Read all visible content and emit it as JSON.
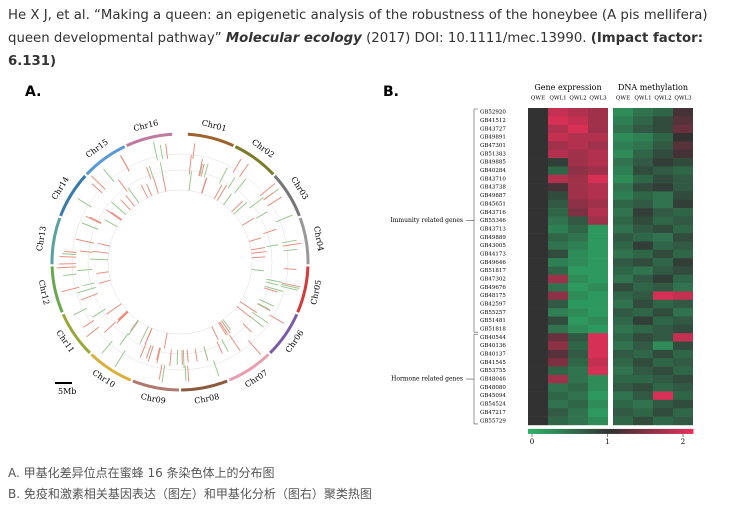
{
  "citation": {
    "authors": "He X J, et al.",
    "title": "“Making a queen: an epigenetic analysis of the robustness of the honeybee (A pis mellifera) queen developmental pathway”",
    "journal": "Molecular ecology",
    "year_doi": "(2017) DOI: 10.1111/mec.13990.",
    "impact": "(Impact factor: 6.131)"
  },
  "panel_a": {
    "label": "A.",
    "scale_bar": "5Mb",
    "chromosomes": [
      {
        "label": "Chr01",
        "color": "#a0622d"
      },
      {
        "label": "Chr02",
        "color": "#7d7a2a"
      },
      {
        "label": "Chr03",
        "color": "#777777"
      },
      {
        "label": "Chr04",
        "color": "#999999"
      },
      {
        "label": "Chr05",
        "color": "#d23c3c"
      },
      {
        "label": "Chr06",
        "color": "#7b5aa6"
      },
      {
        "label": "Chr07",
        "color": "#e8a0b0"
      },
      {
        "label": "Chr08",
        "color": "#8c5a3c"
      },
      {
        "label": "Chr09",
        "color": "#b07a70"
      },
      {
        "label": "Chr10",
        "color": "#d9b03a"
      },
      {
        "label": "Chr11",
        "color": "#9aa83a"
      },
      {
        "label": "Chr12",
        "color": "#6aa84f"
      },
      {
        "label": "Chr13",
        "color": "#5aa0a0"
      },
      {
        "label": "Chr14",
        "color": "#3a7aa8"
      },
      {
        "label": "Chr15",
        "color": "#5a9ad6"
      },
      {
        "label": "Chr16",
        "color": "#c07aa0"
      }
    ]
  },
  "panel_b": {
    "label": "B.",
    "column_groups": [
      "Gene expression",
      "DNA methylation"
    ],
    "columns": [
      "QWE",
      "QWL1",
      "QWL2",
      "QWL3"
    ],
    "colorbar_ticks": [
      0,
      1,
      2
    ],
    "groups": [
      {
        "label": "Immunity related genes",
        "genes": [
          {
            "name": "GB52920",
            "expression": [
              1,
              1.8,
              1.7,
              1.6
            ],
            "methylation": [
              0.3,
              0.5,
              0.6,
              1.1
            ]
          },
          {
            "name": "GB41512",
            "expression": [
              1,
              1.9,
              1.8,
              1.6
            ],
            "methylation": [
              0.4,
              0.6,
              0.8,
              1.2
            ]
          },
          {
            "name": "GB43727",
            "expression": [
              1,
              1.7,
              1.9,
              1.6
            ],
            "methylation": [
              0.5,
              0.7,
              0.8,
              1.3
            ]
          },
          {
            "name": "GB49891",
            "expression": [
              1,
              1.8,
              1.7,
              1.7
            ],
            "methylation": [
              0.3,
              0.4,
              0.6,
              1.0
            ]
          },
          {
            "name": "GB47301",
            "expression": [
              1,
              1.6,
              1.7,
              1.6
            ],
            "methylation": [
              0.4,
              0.5,
              0.7,
              1.2
            ]
          },
          {
            "name": "GB51383",
            "expression": [
              1,
              1.7,
              1.6,
              1.7
            ],
            "methylation": [
              0.3,
              0.6,
              0.8,
              1.1
            ]
          },
          {
            "name": "GB49885",
            "expression": [
              1,
              0.9,
              1.6,
              1.7
            ],
            "methylation": [
              0.5,
              0.7,
              0.9,
              0.8
            ]
          },
          {
            "name": "GB40284",
            "expression": [
              1,
              0.6,
              1.5,
              1.6
            ],
            "methylation": [
              0.4,
              0.8,
              0.7,
              0.6
            ]
          },
          {
            "name": "GB43710",
            "expression": [
              1,
              1.7,
              1.6,
              1.9
            ],
            "methylation": [
              0.3,
              0.6,
              0.8,
              0.7
            ]
          },
          {
            "name": "GB43738",
            "expression": [
              1,
              1.1,
              1.6,
              1.7
            ],
            "methylation": [
              0.5,
              0.8,
              0.9,
              0.7
            ]
          },
          {
            "name": "GB49887",
            "expression": [
              1,
              0.8,
              1.6,
              1.7
            ],
            "methylation": [
              0.4,
              0.6,
              0.5,
              0.8
            ]
          },
          {
            "name": "GB45651",
            "expression": [
              1,
              0.7,
              1.5,
              1.6
            ],
            "methylation": [
              0.6,
              0.7,
              0.5,
              0.9
            ]
          },
          {
            "name": "GB43716",
            "expression": [
              1,
              0.6,
              1.4,
              1.7
            ],
            "methylation": [
              0.5,
              0.9,
              0.7,
              0.6
            ]
          },
          {
            "name": "GB55346",
            "expression": [
              1,
              0.5,
              0.7,
              1.6
            ],
            "methylation": [
              0.6,
              0.8,
              0.6,
              0.7
            ]
          },
          {
            "name": "GB43713",
            "expression": [
              1,
              0.4,
              0.6,
              0.2
            ],
            "methylation": [
              0.5,
              0.7,
              0.8,
              0.6
            ]
          },
          {
            "name": "GB49889",
            "expression": [
              1,
              0.6,
              0.5,
              0.2
            ],
            "methylation": [
              0.7,
              0.6,
              0.5,
              0.8
            ]
          },
          {
            "name": "GB43005",
            "expression": [
              1,
              0.5,
              0.4,
              0.2
            ],
            "methylation": [
              0.6,
              0.9,
              0.6,
              0.7
            ]
          },
          {
            "name": "GB44173",
            "expression": [
              1,
              0.8,
              0.3,
              0.2
            ],
            "methylation": [
              0.5,
              0.6,
              0.8,
              0.6
            ]
          },
          {
            "name": "GB49646",
            "expression": [
              1,
              0.4,
              0.3,
              0.2
            ],
            "methylation": [
              0.7,
              0.8,
              0.6,
              0.9
            ]
          },
          {
            "name": "GB51817",
            "expression": [
              1,
              0.6,
              0.2,
              0.2
            ],
            "methylation": [
              0.6,
              0.5,
              0.7,
              0.8
            ]
          },
          {
            "name": "GB47302",
            "expression": [
              1,
              1.6,
              0.3,
              0.2
            ],
            "methylation": [
              0.5,
              0.7,
              0.9,
              0.6
            ]
          },
          {
            "name": "GB49676",
            "expression": [
              1,
              0.5,
              0.2,
              0.3
            ],
            "methylation": [
              0.8,
              0.6,
              0.7,
              0.5
            ]
          },
          {
            "name": "GB48175",
            "expression": [
              1,
              1.5,
              0.3,
              0.2
            ],
            "methylation": [
              0.6,
              0.7,
              1.9,
              1.8
            ]
          },
          {
            "name": "GB42597",
            "expression": [
              1,
              0.7,
              0.2,
              0.2
            ],
            "methylation": [
              0.5,
              0.8,
              0.6,
              0.7
            ]
          },
          {
            "name": "GB55257",
            "expression": [
              1,
              0.4,
              0.3,
              0.2
            ],
            "methylation": [
              0.7,
              0.6,
              0.8,
              0.5
            ]
          },
          {
            "name": "GB51481",
            "expression": [
              1,
              0.8,
              0.2,
              0.3
            ],
            "methylation": [
              0.6,
              0.9,
              0.6,
              0.7
            ]
          },
          {
            "name": "GB51818",
            "expression": [
              1,
              0.5,
              0.3,
              0.2
            ],
            "methylation": [
              0.5,
              0.6,
              0.7,
              0.8
            ]
          }
        ]
      },
      {
        "label": "Hormone related genes",
        "genes": [
          {
            "name": "GB40544",
            "expression": [
              1,
              1.3,
              0.7,
              1.9
            ],
            "methylation": [
              0.6,
              0.8,
              0.7,
              1.8
            ]
          },
          {
            "name": "GB40136",
            "expression": [
              1,
              1.5,
              0.6,
              1.9
            ],
            "methylation": [
              0.5,
              0.7,
              0.3,
              0.8
            ]
          },
          {
            "name": "GB40137",
            "expression": [
              1,
              1.2,
              0.7,
              1.9
            ],
            "methylation": [
              0.7,
              0.6,
              0.8,
              0.6
            ]
          },
          {
            "name": "GB41545",
            "expression": [
              1,
              1.4,
              0.6,
              1.8
            ],
            "methylation": [
              0.6,
              0.8,
              0.6,
              0.7
            ]
          },
          {
            "name": "GB53755",
            "expression": [
              1,
              0.6,
              0.5,
              1.9
            ],
            "methylation": [
              0.5,
              0.7,
              0.8,
              0.6
            ]
          },
          {
            "name": "GB48046",
            "expression": [
              1,
              1.6,
              0.5,
              0.3
            ],
            "methylation": [
              0.6,
              0.6,
              0.7,
              0.8
            ]
          },
          {
            "name": "GB48080",
            "expression": [
              1,
              0.5,
              0.6,
              0.3
            ],
            "methylation": [
              0.7,
              0.8,
              0.6,
              0.7
            ]
          },
          {
            "name": "GB45094",
            "expression": [
              1,
              0.6,
              0.5,
              0.2
            ],
            "methylation": [
              0.5,
              0.7,
              1.9,
              0.6
            ]
          },
          {
            "name": "GB54524",
            "expression": [
              1,
              0.5,
              0.6,
              0.3
            ],
            "methylation": [
              0.6,
              0.5,
              0.7,
              0.8
            ]
          },
          {
            "name": "GB47217",
            "expression": [
              1,
              0.7,
              0.5,
              0.2
            ],
            "methylation": [
              0.7,
              0.6,
              0.8,
              0.6
            ]
          },
          {
            "name": "GB55729",
            "expression": [
              1,
              0.6,
              0.5,
              0.3
            ],
            "methylation": [
              0.6,
              0.8,
              0.6,
              0.7
            ]
          }
        ]
      }
    ]
  },
  "captions": [
    "A. 甲基化差异位点在蜜蜂 16 条染色体上的分布图",
    "B. 免疫和激素相关基因表达（图左）和甲基化分析（图右）聚类热图"
  ]
}
